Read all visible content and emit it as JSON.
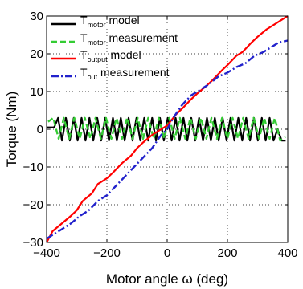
{
  "chart_data": {
    "type": "line",
    "title": "",
    "xlabel": "Motor angle ω (deg)",
    "ylabel": "Torque (Nm)",
    "xlim": [
      -400,
      400
    ],
    "ylim": [
      -30,
      30
    ],
    "xticks": [
      -400,
      -200,
      0,
      200,
      400
    ],
    "yticks": [
      -30,
      -20,
      -10,
      0,
      10,
      20,
      30
    ],
    "xtick_labels": [
      "−400",
      "−200",
      "0",
      "200",
      "400"
    ],
    "ytick_labels": [
      "−30",
      "−20",
      "−10",
      "0",
      "10",
      "20",
      "30"
    ],
    "grid": true,
    "legend_position": "top-left",
    "series": [
      {
        "name": "T_motor model",
        "legend_main": "T",
        "legend_sub": "motor",
        "legend_rest": " model",
        "color": "#000000",
        "style": "solid",
        "x": [
          -400,
          -375,
          -362,
          -349,
          -336,
          -323,
          -310,
          -297,
          -284,
          -271,
          -258,
          -245,
          -232,
          -219,
          -206,
          -193,
          -180,
          -167,
          -154,
          -141,
          -128,
          -115,
          -102,
          -89,
          -76,
          -63,
          -50,
          -37,
          -24,
          -11,
          2,
          15,
          28,
          41,
          54,
          67,
          80,
          93,
          106,
          119,
          132,
          145,
          158,
          171,
          184,
          197,
          210,
          223,
          236,
          249,
          262,
          275,
          288,
          301,
          314,
          327,
          340,
          353,
          366,
          380,
          393
        ],
        "y": [
          0.5,
          0.5,
          3,
          -3,
          3,
          -3,
          3,
          -3,
          3,
          -3,
          3,
          -3,
          3,
          -3,
          3,
          -3,
          3,
          -3,
          3,
          -3,
          3,
          -3,
          3,
          -3,
          3,
          -3,
          3,
          -3,
          3,
          -3,
          3,
          -3,
          3,
          -3,
          3,
          -3,
          3,
          -3,
          3,
          -3,
          3,
          -3,
          3,
          -3,
          3,
          -3,
          3,
          -3,
          3,
          -3,
          3,
          -3,
          3,
          -3,
          3,
          -3,
          3,
          -3,
          0,
          -3,
          -3
        ]
      },
      {
        "name": "T_motor measurement",
        "legend_main": "T",
        "legend_sub": "motor",
        "legend_rest": " measurement",
        "color": "#33cc33",
        "style": "dashed",
        "x": [
          -395,
          -378,
          -360,
          -343,
          -325,
          -308,
          -290,
          -273,
          -255,
          -238,
          -220,
          -203,
          -185,
          -168,
          -150,
          -133,
          -115,
          -98,
          -80,
          -63,
          -45,
          -28,
          -10,
          7,
          25,
          42,
          60,
          77,
          95,
          112,
          130,
          147,
          165,
          182,
          200,
          217,
          235,
          252,
          270,
          287,
          305,
          322,
          340,
          357,
          375,
          392
        ],
        "y": [
          2,
          3,
          -2.5,
          3,
          -2.5,
          3,
          -2.5,
          3,
          -2.5,
          3,
          -2.5,
          3,
          -2.5,
          3,
          -2.5,
          3,
          -2.5,
          3,
          -2.5,
          3,
          -2.5,
          3,
          -2.5,
          3,
          -2.5,
          3,
          -2.5,
          3,
          -2.5,
          3,
          -2.5,
          3,
          -2.5,
          3,
          -2.5,
          3,
          -2.5,
          3,
          -2.5,
          3,
          -2.5,
          3,
          -2.5,
          3,
          -3,
          -2
        ]
      },
      {
        "name": "T_output model",
        "legend_main": "T",
        "legend_sub": "output",
        "legend_rest": " model",
        "color": "#ff0000",
        "style": "solid",
        "x": [
          -400,
          -380,
          -350,
          -320,
          -300,
          -280,
          -250,
          -230,
          -200,
          -180,
          -150,
          -120,
          -100,
          -80,
          -50,
          -20,
          0,
          30,
          50,
          80,
          100,
          130,
          150,
          180,
          200,
          230,
          250,
          280,
          300,
          330,
          350,
          380,
          400
        ],
        "y": [
          -30,
          -27,
          -25,
          -23,
          -21.5,
          -19,
          -17,
          -14.5,
          -13,
          -11.5,
          -9,
          -7,
          -5,
          -3.5,
          -1.5,
          0,
          1,
          4,
          5.5,
          8,
          9.5,
          11.5,
          13,
          15.5,
          17,
          19.5,
          20.5,
          23,
          24.5,
          26.5,
          27.5,
          29,
          30
        ]
      },
      {
        "name": "T_out measurement",
        "legend_main": "T",
        "legend_sub": "out",
        "legend_rest": " measurement",
        "color": "#2222cc",
        "style": "dashdot",
        "x": [
          -400,
          -380,
          -350,
          -320,
          -290,
          -260,
          -230,
          -200,
          -170,
          -140,
          -110,
          -80,
          -50,
          -20,
          0,
          20,
          50,
          80,
          110,
          140,
          170,
          200,
          230,
          260,
          290,
          320,
          350,
          370,
          400
        ],
        "y": [
          -29,
          -28,
          -26.5,
          -25,
          -23,
          -21.5,
          -19,
          -17.5,
          -15,
          -12.5,
          -10,
          -7.5,
          -5,
          -1.5,
          0,
          3,
          6.5,
          9,
          10.5,
          12,
          14,
          15,
          16.5,
          17.5,
          19.5,
          20.5,
          22,
          23,
          23.5
        ]
      }
    ]
  }
}
